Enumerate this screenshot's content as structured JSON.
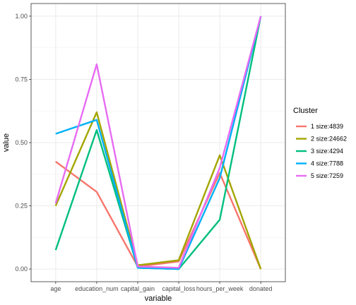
{
  "chart_data": {
    "type": "line",
    "x_categories": [
      "age",
      "education_num",
      "capital_gain",
      "capital_loss",
      "hours_per_week",
      "donated"
    ],
    "xlabel": "variable",
    "ylabel": "value",
    "ylim": [
      -0.05,
      1.05
    ],
    "yticks": [
      "0.00",
      "0.25",
      "0.50",
      "0.75",
      "1.00"
    ],
    "ytick_values": [
      0,
      0.25,
      0.5,
      0.75,
      1.0
    ],
    "grid": true,
    "legend": {
      "title": "Cluster",
      "position": "right"
    },
    "series": [
      {
        "name": "1 size:4839",
        "color": "#F8766D",
        "values": [
          0.425,
          0.305,
          0.01,
          0.03,
          0.38,
          0.0
        ]
      },
      {
        "name": "2 size:24662",
        "color": "#A3A500",
        "values": [
          0.25,
          0.62,
          0.015,
          0.035,
          0.45,
          0.0
        ]
      },
      {
        "name": "3 size:4294",
        "color": "#00BF7D",
        "values": [
          0.075,
          0.55,
          0.005,
          0.0,
          0.195,
          1.0
        ]
      },
      {
        "name": "4 size:7788",
        "color": "#00B0F6",
        "values": [
          0.535,
          0.59,
          0.005,
          0.0,
          0.36,
          1.0
        ]
      },
      {
        "name": "5 size:7259",
        "color": "#E76BF3",
        "values": [
          0.26,
          0.81,
          0.01,
          0.005,
          0.4,
          1.0
        ]
      }
    ]
  }
}
